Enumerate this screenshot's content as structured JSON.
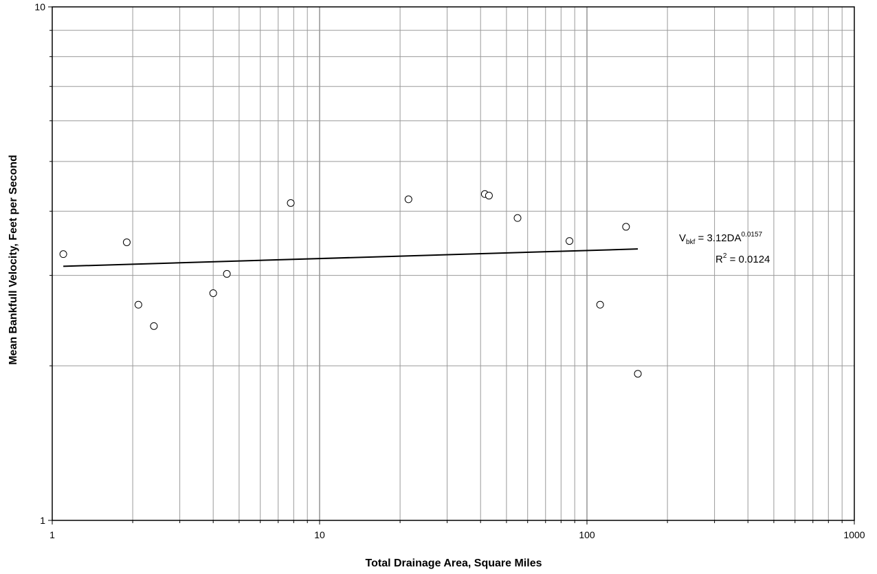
{
  "chart_data": {
    "type": "scatter",
    "xlabel": "Total Drainage Area, Square Miles",
    "ylabel": "Mean Bankfull Velocity, Feet per Second",
    "xscale": "log",
    "yscale": "log",
    "xlim": [
      1,
      1000
    ],
    "ylim": [
      1,
      10
    ],
    "x_ticks": [
      "1",
      "10",
      "100",
      "1000"
    ],
    "y_ticks": [
      "1",
      "10"
    ],
    "grid": true,
    "legend": "none",
    "points": [
      {
        "x": 1.1,
        "y": 3.3
      },
      {
        "x": 1.9,
        "y": 3.48
      },
      {
        "x": 2.1,
        "y": 2.63
      },
      {
        "x": 2.4,
        "y": 2.39
      },
      {
        "x": 4.0,
        "y": 2.77
      },
      {
        "x": 4.5,
        "y": 3.02
      },
      {
        "x": 7.8,
        "y": 4.15
      },
      {
        "x": 21.5,
        "y": 4.22
      },
      {
        "x": 41.5,
        "y": 4.32
      },
      {
        "x": 43.0,
        "y": 4.29
      },
      {
        "x": 55.0,
        "y": 3.88
      },
      {
        "x": 86.0,
        "y": 3.5
      },
      {
        "x": 112.0,
        "y": 2.63
      },
      {
        "x": 140.0,
        "y": 3.73
      },
      {
        "x": 155.0,
        "y": 1.93
      }
    ],
    "trendline": {
      "type": "power",
      "coefficient": 3.12,
      "exponent": 0.0157,
      "x_range": [
        1.1,
        155
      ]
    },
    "annotation": {
      "eq_prefix": "V",
      "eq_subscript": "bkf",
      "eq_middle": " = 3.12DA",
      "eq_superscript": "0.0157",
      "r2_prefix": "R",
      "r2_superscript": "2",
      "r2_value": " = 0.0124"
    },
    "colors": {
      "grid": "#999999",
      "axis": "#000000",
      "marker_stroke": "#000000",
      "marker_fill": "#ffffff",
      "trendline": "#000000"
    }
  }
}
